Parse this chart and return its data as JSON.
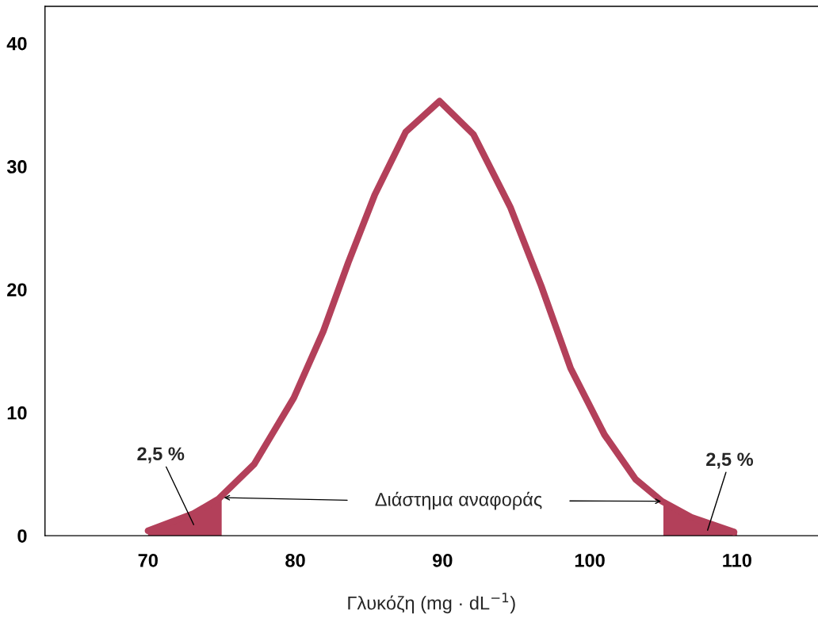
{
  "chart_data": {
    "type": "line",
    "xlabel": "Γλυκόζη (mg · dL$^{−1}$)",
    "xlim": [
      63,
      115.5
    ],
    "xticks": [
      70,
      80,
      90,
      100,
      110
    ],
    "ylim": [
      0,
      43
    ],
    "yticks": [
      0,
      10,
      20,
      30,
      40
    ],
    "grid": false,
    "series": [
      {
        "color": "#b3405a",
        "x": [
          70.0,
          73.1,
          74.8,
          77.2,
          79.9,
          81.9,
          83.6,
          85.4,
          87.5,
          89.8,
          92.1,
          94.6,
          96.7,
          98.7,
          101.0,
          103.1,
          104.9,
          106.9,
          109.8
        ],
        "values": [
          0.4,
          1.8,
          3.0,
          5.8,
          11.2,
          16.6,
          22.2,
          27.7,
          32.8,
          35.3,
          32.6,
          26.7,
          20.3,
          13.6,
          8.2,
          4.6,
          2.8,
          1.5,
          0.3
        ]
      },
      {
        "type": "area",
        "color": "#b3405a",
        "x": [
          70.0,
          72.0,
          73.1,
          75.0
        ],
        "values": [
          0.4,
          1.1,
          1.8,
          3.1
        ]
      },
      {
        "type": "area",
        "color": "#b3405a",
        "x": [
          105.0,
          106.9,
          108.0,
          110.0
        ],
        "values": [
          2.8,
          1.5,
          0.9,
          0.3
        ]
      }
    ],
    "annotations": [
      "2,5 %",
      "2,5 %",
      "Διάστημα αναφοράς"
    ]
  }
}
